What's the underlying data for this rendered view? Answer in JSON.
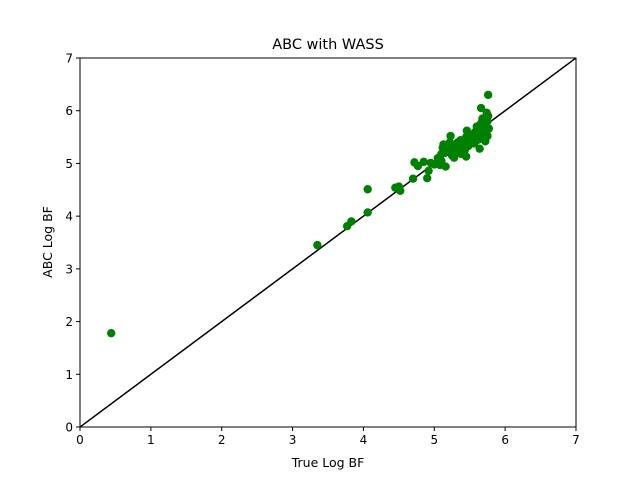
{
  "chart_data": {
    "type": "scatter",
    "title": "ABC with WASS",
    "xlabel": "True Log BF",
    "ylabel": "ABC Log BF",
    "xlim": [
      0,
      7
    ],
    "ylim": [
      0,
      7
    ],
    "xticks": [
      "0",
      "1",
      "2",
      "3",
      "4",
      "5",
      "6",
      "7"
    ],
    "yticks": [
      "0",
      "1",
      "2",
      "3",
      "4",
      "5",
      "6",
      "7"
    ],
    "grid": false,
    "point_color": "#008000",
    "reference_line": {
      "from": [
        0,
        0
      ],
      "to": [
        7,
        7
      ],
      "color": "#000000"
    },
    "points": [
      [
        0.44,
        1.78
      ],
      [
        3.35,
        3.45
      ],
      [
        3.77,
        3.81
      ],
      [
        3.83,
        3.9
      ],
      [
        4.06,
        4.07
      ],
      [
        4.06,
        4.51
      ],
      [
        4.45,
        4.54
      ],
      [
        4.5,
        4.56
      ],
      [
        4.52,
        4.48
      ],
      [
        4.7,
        4.71
      ],
      [
        4.72,
        5.02
      ],
      [
        4.77,
        4.95
      ],
      [
        4.85,
        5.03
      ],
      [
        4.9,
        4.72
      ],
      [
        4.92,
        4.86
      ],
      [
        4.95,
        5.01
      ],
      [
        5.0,
        4.98
      ],
      [
        5.05,
        5.1
      ],
      [
        5.08,
        4.97
      ],
      [
        5.1,
        5.18
      ],
      [
        5.12,
        5.3
      ],
      [
        5.13,
        5.36
      ],
      [
        5.15,
        5.2
      ],
      [
        5.16,
        4.94
      ],
      [
        5.2,
        5.25
      ],
      [
        5.22,
        5.4
      ],
      [
        5.23,
        5.52
      ],
      [
        5.25,
        5.15
      ],
      [
        5.27,
        5.3
      ],
      [
        5.28,
        5.11
      ],
      [
        5.3,
        5.22
      ],
      [
        5.32,
        5.35
      ],
      [
        5.35,
        5.28
      ],
      [
        5.37,
        5.44
      ],
      [
        5.38,
        5.18
      ],
      [
        5.4,
        5.32
      ],
      [
        5.42,
        5.4
      ],
      [
        5.43,
        5.25
      ],
      [
        5.45,
        5.13
      ],
      [
        5.45,
        5.5
      ],
      [
        5.46,
        5.62
      ],
      [
        5.48,
        5.33
      ],
      [
        5.5,
        5.42
      ],
      [
        5.52,
        5.55
      ],
      [
        5.55,
        5.48
      ],
      [
        5.56,
        5.38
      ],
      [
        5.58,
        5.6
      ],
      [
        5.6,
        5.7
      ],
      [
        5.62,
        5.45
      ],
      [
        5.63,
        5.52
      ],
      [
        5.64,
        5.28
      ],
      [
        5.65,
        5.64
      ],
      [
        5.66,
        5.76
      ],
      [
        5.66,
        6.05
      ],
      [
        5.68,
        5.85
      ],
      [
        5.7,
        5.58
      ],
      [
        5.71,
        5.7
      ],
      [
        5.72,
        5.42
      ],
      [
        5.73,
        5.5
      ],
      [
        5.74,
        5.62
      ],
      [
        5.74,
        5.96
      ],
      [
        5.75,
        5.8
      ],
      [
        5.75,
        5.52
      ],
      [
        5.76,
        5.9
      ],
      [
        5.76,
        6.3
      ],
      [
        5.77,
        5.66
      ],
      [
        5.58,
        5.42
      ],
      [
        5.4,
        5.2
      ],
      [
        5.33,
        5.4
      ],
      [
        5.1,
        5.05
      ]
    ]
  }
}
